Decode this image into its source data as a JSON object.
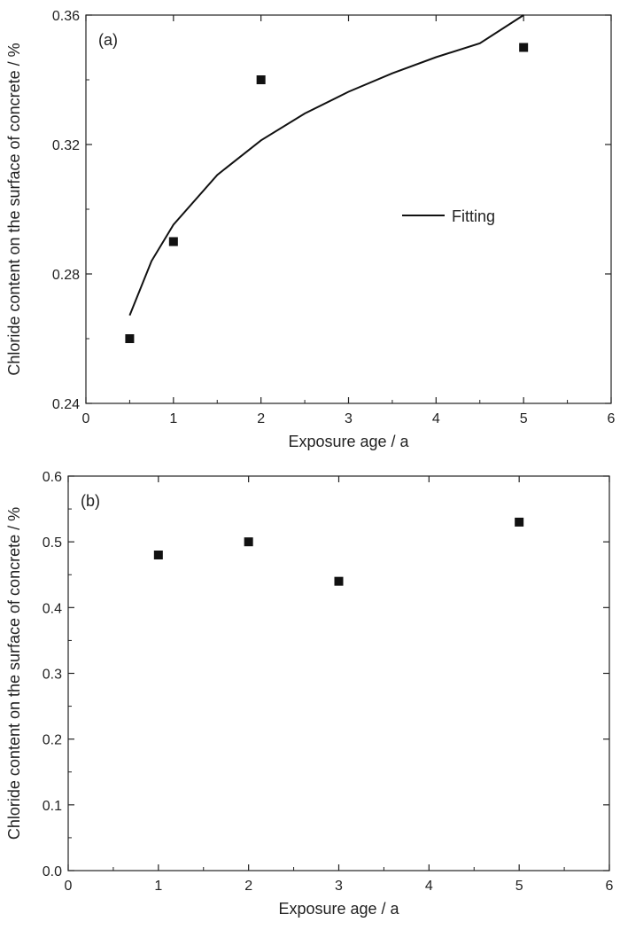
{
  "chart_data": [
    {
      "panel_label": "(a)",
      "type": "scatter",
      "xlabel": "Exposure age / a",
      "ylabel": "Chloride content on the surface of concrete / %",
      "xlim": [
        0,
        6
      ],
      "ylim": [
        0.24,
        0.36
      ],
      "x_ticks": [
        0,
        1,
        2,
        3,
        4,
        5,
        6
      ],
      "y_ticks": [
        0.24,
        0.28,
        0.32,
        0.36
      ],
      "x_tick_labels": [
        "0",
        "1",
        "2",
        "3",
        "4",
        "5",
        "6"
      ],
      "y_tick_labels": [
        "0.24",
        "0.28",
        "0.32",
        "0.36"
      ],
      "x": [
        0.5,
        1,
        2,
        5
      ],
      "y": [
        0.26,
        0.29,
        0.34,
        0.35
      ],
      "fit": {
        "legend_label": "Fitting",
        "x": [
          0.5,
          0.75,
          1,
          1.5,
          2,
          2.5,
          3,
          3.5,
          4,
          4.5,
          5
        ],
        "y": [
          0.2672,
          0.284,
          0.2952,
          0.3106,
          0.3213,
          0.3296,
          0.3363,
          0.342,
          0.347,
          0.3513,
          0.36
        ]
      },
      "marker": "filled-square",
      "grid": false,
      "legend_position": "center-right"
    },
    {
      "panel_label": "(b)",
      "type": "scatter",
      "xlabel": "Exposure age / a",
      "ylabel": "Chloride content on the surface of concrete / %",
      "xlim": [
        0,
        6
      ],
      "ylim": [
        0,
        0.6
      ],
      "x_ticks": [
        0,
        1,
        2,
        3,
        4,
        5,
        6
      ],
      "y_ticks": [
        0.0,
        0.1,
        0.2,
        0.3,
        0.4,
        0.5,
        0.6
      ],
      "x_tick_labels": [
        "0",
        "1",
        "2",
        "3",
        "4",
        "5",
        "6"
      ],
      "y_tick_labels": [
        "0.0",
        "0.1",
        "0.2",
        "0.3",
        "0.4",
        "0.5",
        "0.6"
      ],
      "x": [
        1,
        2,
        3,
        5
      ],
      "y": [
        0.48,
        0.5,
        0.44,
        0.53
      ],
      "marker": "filled-square",
      "grid": false
    }
  ]
}
